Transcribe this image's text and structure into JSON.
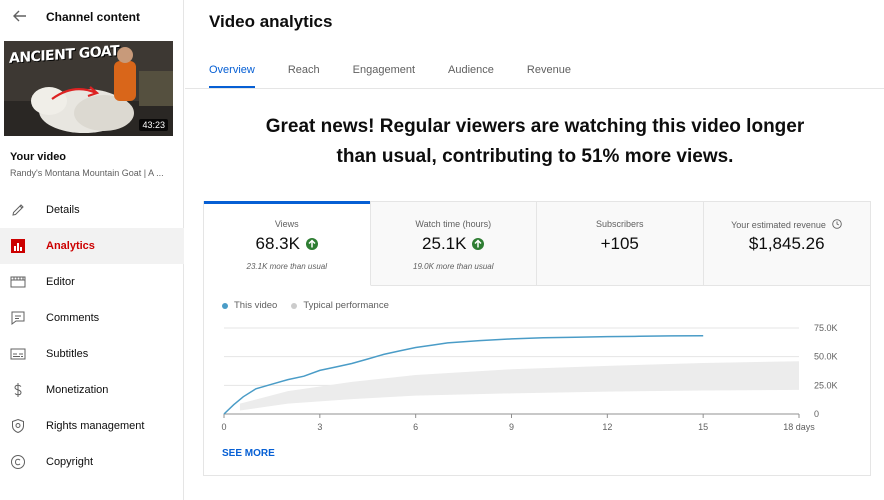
{
  "sidebar": {
    "title": "Channel content",
    "your_video_label": "Your video",
    "video_title": "Randy's Montana Mountain Goat | A ...",
    "thumbnail": {
      "overlay_text": "ANCIENT GOAT",
      "duration": "43:23"
    },
    "items": [
      {
        "label": "Details",
        "icon": "pencil-icon",
        "active": false
      },
      {
        "label": "Analytics",
        "icon": "analytics-icon",
        "active": true
      },
      {
        "label": "Editor",
        "icon": "film-icon",
        "active": false
      },
      {
        "label": "Comments",
        "icon": "comment-icon",
        "active": false
      },
      {
        "label": "Subtitles",
        "icon": "subtitles-icon",
        "active": false
      },
      {
        "label": "Monetization",
        "icon": "dollar-icon",
        "active": false
      },
      {
        "label": "Rights management",
        "icon": "shield-icon",
        "active": false
      },
      {
        "label": "Copyright",
        "icon": "copyright-icon",
        "active": false
      }
    ]
  },
  "main": {
    "title": "Video analytics",
    "tabs": [
      {
        "label": "Overview",
        "active": true
      },
      {
        "label": "Reach",
        "active": false
      },
      {
        "label": "Engagement",
        "active": false
      },
      {
        "label": "Audience",
        "active": false
      },
      {
        "label": "Revenue",
        "active": false
      }
    ],
    "headline_line1": "Great news! Regular viewers are watching this video longer",
    "headline_line2": "than usual, contributing to 51% more views.",
    "metrics": [
      {
        "label": "Views",
        "value": "68.3K",
        "trend": "up",
        "sub": "23.1K more than usual"
      },
      {
        "label": "Watch time (hours)",
        "value": "25.1K",
        "trend": "up",
        "sub": "19.0K more than usual"
      },
      {
        "label": "Subscribers",
        "value": "+105",
        "trend": "",
        "sub": ""
      },
      {
        "label": "Your estimated revenue",
        "value": "$1,845.26",
        "trend": "",
        "sub": ""
      }
    ],
    "see_more": "SEE MORE"
  },
  "colors": {
    "accent": "#065fd4",
    "active_nav": "#cc0000",
    "trend_up": "#2e7d32",
    "series_line": "#4a9cc7",
    "band": "#ececec"
  },
  "chart_data": {
    "type": "line",
    "legend": [
      {
        "name": "This video",
        "color": "#4a9cc7"
      },
      {
        "name": "Typical performance",
        "color": "#cccccc"
      }
    ],
    "x_ticks": [
      "0",
      "3",
      "6",
      "9",
      "12",
      "15",
      "18 days"
    ],
    "y_ticks": [
      "0",
      "25.0K",
      "50.0K",
      "75.0K"
    ],
    "xlim": [
      0,
      18
    ],
    "ylim": [
      0,
      75000
    ],
    "series": [
      {
        "name": "This video",
        "x": [
          0,
          0.3,
          0.6,
          1,
          1.5,
          2,
          2.5,
          3,
          3.5,
          4,
          4.5,
          5,
          5.5,
          6,
          6.5,
          7,
          7.5,
          8,
          9,
          10,
          11,
          12,
          13,
          14,
          15
        ],
        "y": [
          0,
          8000,
          15000,
          22000,
          26000,
          30000,
          33000,
          38000,
          41000,
          44000,
          48000,
          52000,
          55000,
          58000,
          60000,
          62000,
          63000,
          64000,
          65500,
          66500,
          67000,
          67500,
          67800,
          68100,
          68300
        ]
      },
      {
        "name": "Typical performance",
        "x": [
          0.5,
          2,
          4,
          6,
          9,
          12,
          15,
          18
        ],
        "low": [
          3000,
          9000,
          13000,
          16000,
          18000,
          19500,
          20500,
          21000
        ],
        "high": [
          9000,
          20000,
          28000,
          34000,
          39000,
          42000,
          44500,
          46000
        ]
      }
    ]
  }
}
